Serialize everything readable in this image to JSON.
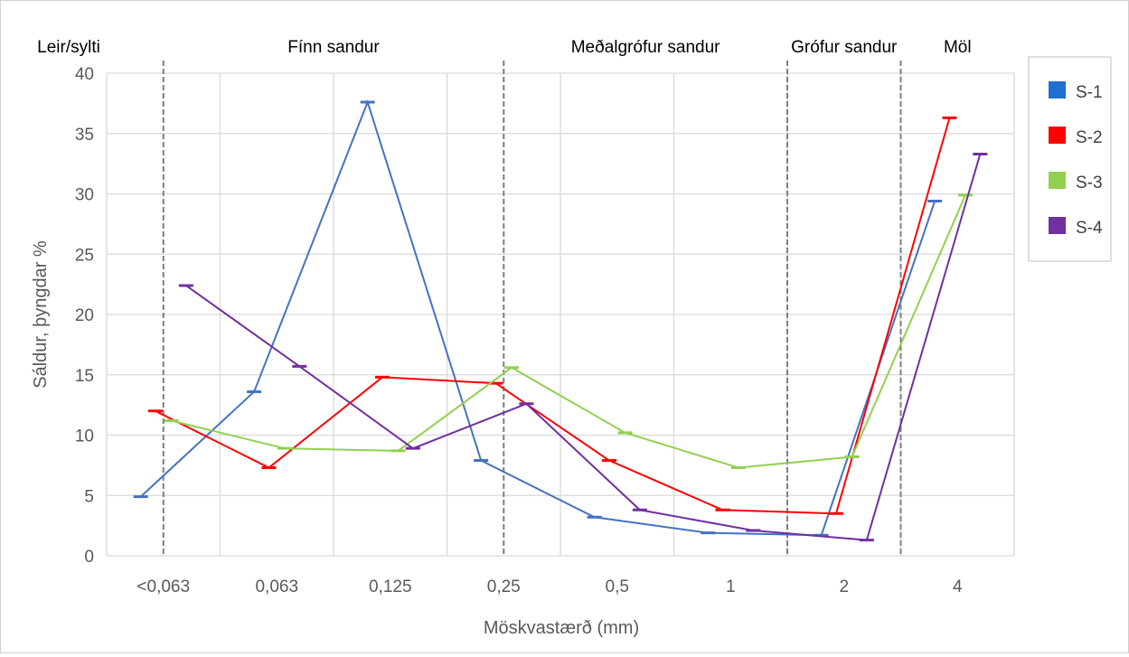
{
  "chart_data": {
    "type": "line",
    "xlabel": "Möskvastærð (mm)",
    "ylabel": "Sáldur, þyngdar %",
    "categories": [
      "<0,063",
      "0,063",
      "0,125",
      "0,25",
      "0,5",
      "1",
      "2",
      "4"
    ],
    "ylim": [
      0,
      40
    ],
    "yticks": [
      "0",
      "5",
      "10",
      "15",
      "20",
      "25",
      "30",
      "35",
      "40"
    ],
    "grid": true,
    "legend_position": "right",
    "regions": [
      {
        "label": "Leir/sylti",
        "from": 0,
        "to": 0.5
      },
      {
        "label": "Fínn sandur",
        "from": 0.5,
        "to": 3.5
      },
      {
        "label": "Meðalgrófur sandur",
        "from": 3.5,
        "to": 6.0
      },
      {
        "label": "Grófur sandur",
        "from": 6.0,
        "to": 7.0
      },
      {
        "label": "Möl",
        "from": 7.0,
        "to": 8.0
      }
    ],
    "series": [
      {
        "name": "S-1",
        "color": "#4472C4",
        "legend_color": "#1F6FD1",
        "x": [
          -0.2,
          0.8,
          1.8,
          2.8,
          3.8,
          4.8,
          5.8,
          6.8
        ],
        "values": [
          4.9,
          13.6,
          37.6,
          7.9,
          3.2,
          1.9,
          1.7,
          29.4
        ]
      },
      {
        "name": "S-2",
        "color": "#FF0000",
        "legend_color": "#FF0000",
        "x": [
          -0.07,
          0.93,
          1.93,
          2.93,
          3.93,
          4.93,
          5.93,
          6.93
        ],
        "values": [
          12.0,
          7.3,
          14.8,
          14.3,
          7.9,
          3.8,
          3.5,
          36.3
        ]
      },
      {
        "name": "S-3",
        "color": "#92D050",
        "legend_color": "#92D050",
        "x": [
          0.07,
          1.07,
          2.07,
          3.07,
          4.07,
          5.07,
          6.07,
          7.07
        ],
        "values": [
          11.2,
          8.9,
          8.7,
          15.6,
          10.2,
          7.3,
          8.2,
          29.9
        ]
      },
      {
        "name": "S-4",
        "color": "#7030A0",
        "legend_color": "#7030A0",
        "x": [
          0.2,
          1.2,
          2.2,
          3.2,
          4.2,
          5.2,
          6.2,
          7.2
        ],
        "values": [
          22.4,
          15.7,
          8.9,
          12.6,
          3.8,
          2.1,
          1.3,
          33.3
        ]
      }
    ]
  }
}
